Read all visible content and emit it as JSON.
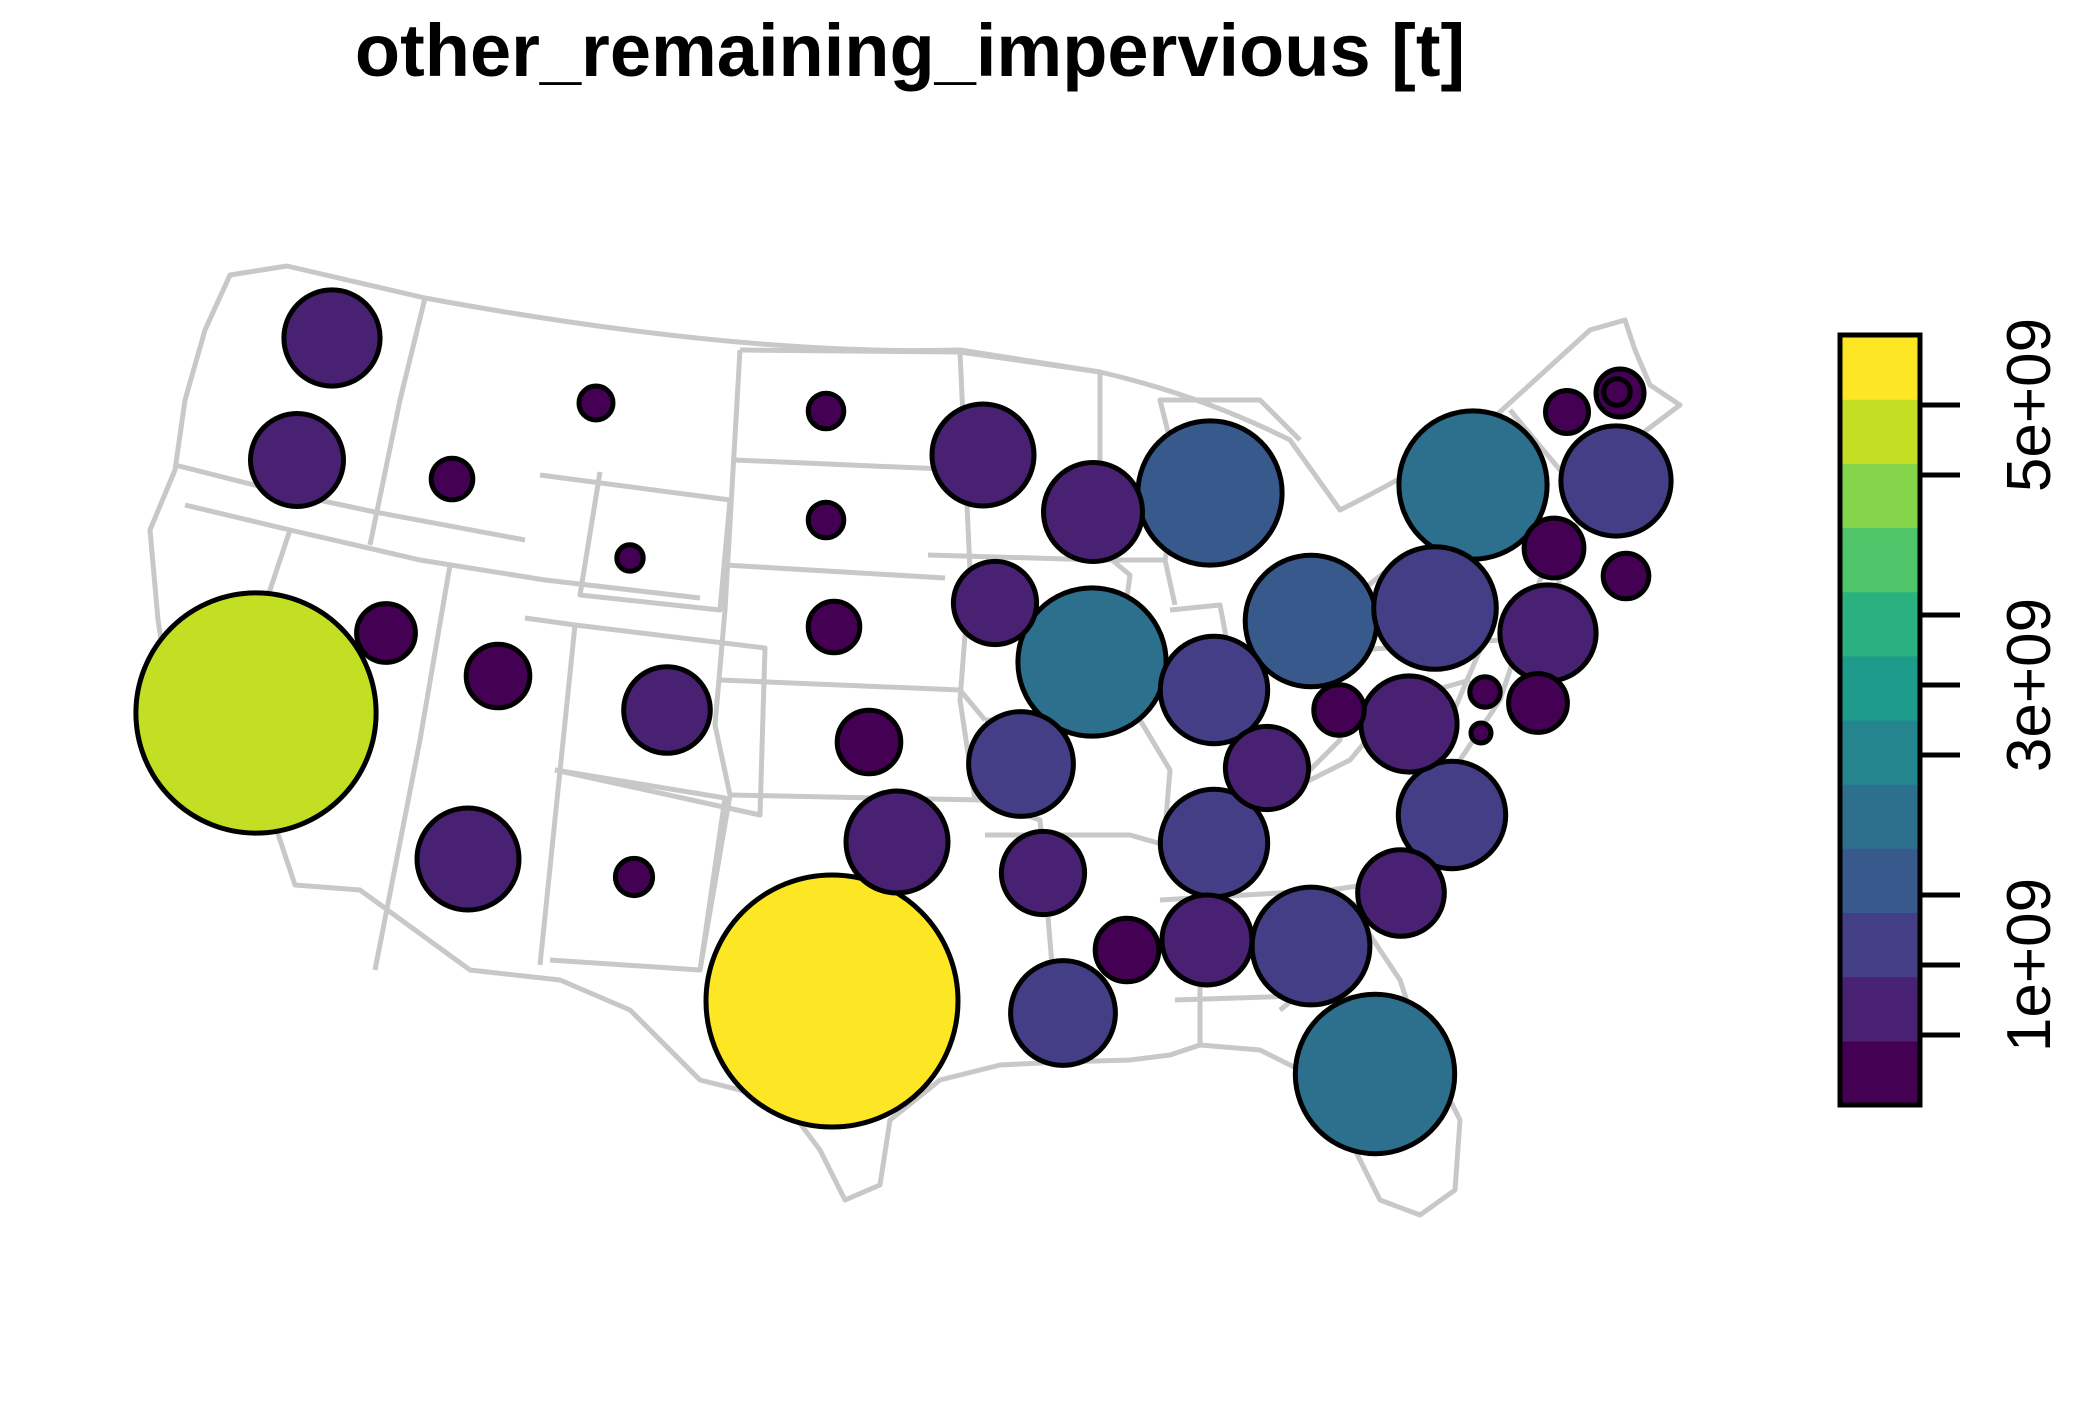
{
  "title": "other_remaining_impervious [t]",
  "legend": {
    "ticks": [
      {
        "label": "1e+09",
        "value": 1000000000
      },
      {
        "label": "3e+09",
        "value": 3000000000
      },
      {
        "label": "5e+09",
        "value": 5000000000
      }
    ],
    "min": 0,
    "max": 5500000000,
    "bins": 11,
    "palette": [
      "#440154",
      "#482173",
      "#433E85",
      "#38598C",
      "#2D708E",
      "#25858E",
      "#1E9B8A",
      "#2BB07F",
      "#51C56A",
      "#85D54A",
      "#C2DF23",
      "#FDE725"
    ]
  },
  "chart_data": {
    "type": "proportional-symbol-map",
    "title": "other_remaining_impervious [t]",
    "color_scale": "viridis",
    "states": [
      {
        "state": "WA",
        "value": 800000000
      },
      {
        "state": "OR",
        "value": 750000000
      },
      {
        "state": "CA",
        "value": 5000000000
      },
      {
        "state": "ID",
        "value": 150000000
      },
      {
        "state": "NV",
        "value": 300000000
      },
      {
        "state": "MT",
        "value": 100000000
      },
      {
        "state": "WY",
        "value": 60000000
      },
      {
        "state": "UT",
        "value": 350000000
      },
      {
        "state": "AZ",
        "value": 900000000
      },
      {
        "state": "CO",
        "value": 650000000
      },
      {
        "state": "NM",
        "value": 120000000
      },
      {
        "state": "ND",
        "value": 110000000
      },
      {
        "state": "SD",
        "value": 110000000
      },
      {
        "state": "NE",
        "value": 230000000
      },
      {
        "state": "KS",
        "value": 350000000
      },
      {
        "state": "OK",
        "value": 900000000
      },
      {
        "state": "TX",
        "value": 5500000000
      },
      {
        "state": "MN",
        "value": 900000000
      },
      {
        "state": "IA",
        "value": 600000000
      },
      {
        "state": "MO",
        "value": 950000000
      },
      {
        "state": "AR",
        "value": 600000000
      },
      {
        "state": "LA",
        "value": 950000000
      },
      {
        "state": "WI",
        "value": 850000000
      },
      {
        "state": "IL",
        "value": 1900000000
      },
      {
        "state": "MI",
        "value": 1800000000
      },
      {
        "state": "IN",
        "value": 1000000000
      },
      {
        "state": "OH",
        "value": 1500000000
      },
      {
        "state": "KY",
        "value": 600000000
      },
      {
        "state": "TN",
        "value": 1000000000
      },
      {
        "state": "MS",
        "value": 350000000
      },
      {
        "state": "AL",
        "value": 700000000
      },
      {
        "state": "GA",
        "value": 1200000000
      },
      {
        "state": "FL",
        "value": 2200000000
      },
      {
        "state": "SC",
        "value": 650000000
      },
      {
        "state": "NC",
        "value": 1000000000
      },
      {
        "state": "VA",
        "value": 800000000
      },
      {
        "state": "WV",
        "value": 220000000
      },
      {
        "state": "PA",
        "value": 1300000000
      },
      {
        "state": "NY",
        "value": 1900000000
      },
      {
        "state": "VT",
        "value": 160000000
      },
      {
        "state": "NH",
        "value": 60000000
      },
      {
        "state": "ME",
        "value": 200000000
      },
      {
        "state": "MA",
        "value": 1050000000
      },
      {
        "state": "CT",
        "value": 310000000
      },
      {
        "state": "RI",
        "value": 180000000
      },
      {
        "state": "NJ",
        "value": 800000000
      },
      {
        "state": "DE",
        "value": 80000000
      },
      {
        "state": "MD",
        "value": 300000000
      },
      {
        "state": "DC",
        "value": 20000000
      }
    ]
  }
}
